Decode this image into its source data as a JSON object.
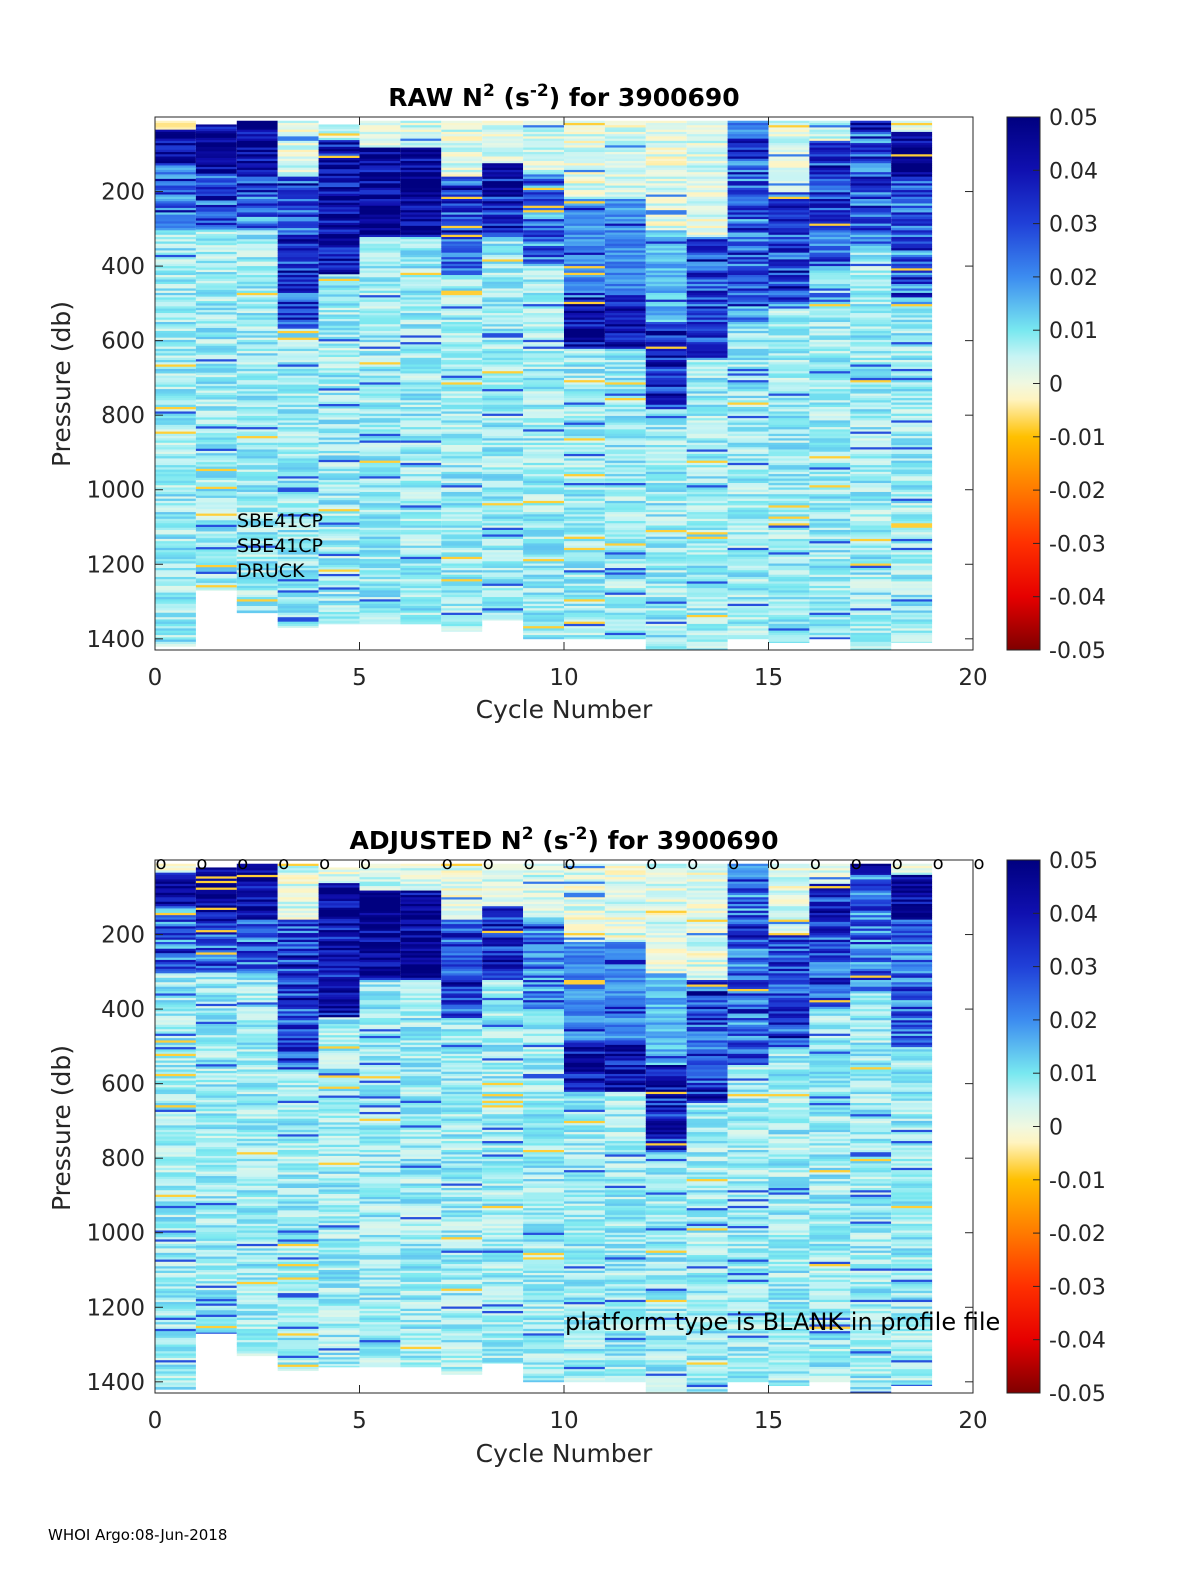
{
  "footer": "WHOI Argo:08-Jun-2018",
  "colormap": {
    "stops": [
      {
        "v": -0.05,
        "color": "#7f0000"
      },
      {
        "v": -0.04,
        "color": "#e60000"
      },
      {
        "v": -0.03,
        "color": "#ff3000"
      },
      {
        "v": -0.02,
        "color": "#ff7a00"
      },
      {
        "v": -0.01,
        "color": "#ffc000"
      },
      {
        "v": -0.003,
        "color": "#fff4c0"
      },
      {
        "v": 0.0,
        "color": "#f0f8e0"
      },
      {
        "v": 0.005,
        "color": "#c8f4f4"
      },
      {
        "v": 0.01,
        "color": "#78e8f0"
      },
      {
        "v": 0.02,
        "color": "#3c8cf0"
      },
      {
        "v": 0.03,
        "color": "#2040d8"
      },
      {
        "v": 0.04,
        "color": "#1010b0"
      },
      {
        "v": 0.05,
        "color": "#000080"
      }
    ]
  },
  "chart_data": [
    {
      "type": "heatmap",
      "title_prefix": "RAW N",
      "title_exp1": "2",
      "title_mid": " (s",
      "title_exp2": "-2",
      "title_suffix": ") for 3900690",
      "xlabel": "Cycle Number",
      "ylabel": "Pressure (db)",
      "xlim": [
        0,
        20
      ],
      "ylim": [
        0,
        1430
      ],
      "y_reversed": true,
      "xticks": [
        0,
        5,
        10,
        15,
        20
      ],
      "yticks": [
        200,
        400,
        600,
        800,
        1000,
        1200,
        1400
      ],
      "clim": [
        -0.05,
        0.05
      ],
      "colorbar_ticks": [
        "0.05",
        "0.04",
        "0.03",
        "0.02",
        "0.01",
        "0",
        "-0.01",
        "-0.02",
        "-0.03",
        "-0.04",
        "-0.05"
      ],
      "annotations": [
        "SBE41CP",
        "SBE41CP",
        "DRUCK"
      ],
      "markers_label": "",
      "marker_cycles": [],
      "seed": 11,
      "cycles": [
        {
          "cycle": 0,
          "pmin": 10,
          "pmax": 1420,
          "bands": [
            [
              10,
              30,
              0.0
            ],
            [
              30,
              120,
              0.045
            ],
            [
              120,
              300,
              0.025
            ],
            [
              300,
              1420,
              0.008
            ]
          ]
        },
        {
          "cycle": 1,
          "pmin": 20,
          "pmax": 1270,
          "bands": [
            [
              20,
              150,
              0.045
            ],
            [
              150,
              300,
              0.028
            ],
            [
              300,
              1270,
              0.008
            ]
          ]
        },
        {
          "cycle": 2,
          "pmin": 10,
          "pmax": 1330,
          "bands": [
            [
              10,
              160,
              0.045
            ],
            [
              160,
              300,
              0.026
            ],
            [
              300,
              1330,
              0.008
            ]
          ]
        },
        {
          "cycle": 3,
          "pmin": 10,
          "pmax": 1370,
          "bands": [
            [
              10,
              160,
              0.002
            ],
            [
              160,
              560,
              0.03
            ],
            [
              560,
              1370,
              0.008
            ]
          ]
        },
        {
          "cycle": 4,
          "pmin": 20,
          "pmax": 1360,
          "bands": [
            [
              20,
              60,
              0.003
            ],
            [
              60,
              420,
              0.04
            ],
            [
              420,
              1360,
              0.008
            ]
          ]
        },
        {
          "cycle": 5,
          "pmin": 10,
          "pmax": 1360,
          "bands": [
            [
              10,
              80,
              0.003
            ],
            [
              80,
              320,
              0.045
            ],
            [
              320,
              1360,
              0.008
            ]
          ]
        },
        {
          "cycle": 6,
          "pmin": 10,
          "pmax": 1360,
          "bands": [
            [
              10,
              80,
              0.003
            ],
            [
              80,
              320,
              0.045
            ],
            [
              320,
              1360,
              0.008
            ]
          ]
        },
        {
          "cycle": 7,
          "pmin": 10,
          "pmax": 1380,
          "bands": [
            [
              10,
              160,
              0.002
            ],
            [
              160,
              420,
              0.03
            ],
            [
              420,
              1380,
              0.008
            ]
          ]
        },
        {
          "cycle": 8,
          "pmin": 10,
          "pmax": 1350,
          "bands": [
            [
              10,
              120,
              0.002
            ],
            [
              120,
              320,
              0.035
            ],
            [
              320,
              1350,
              0.008
            ]
          ]
        },
        {
          "cycle": 9,
          "pmin": 10,
          "pmax": 1400,
          "bands": [
            [
              10,
              150,
              0.003
            ],
            [
              150,
              400,
              0.025
            ],
            [
              400,
              1400,
              0.008
            ]
          ]
        },
        {
          "cycle": 10,
          "pmin": 10,
          "pmax": 1400,
          "bands": [
            [
              10,
              220,
              0.002
            ],
            [
              220,
              480,
              0.02
            ],
            [
              480,
              620,
              0.04
            ],
            [
              620,
              1400,
              0.008
            ]
          ]
        },
        {
          "cycle": 11,
          "pmin": 10,
          "pmax": 1400,
          "bands": [
            [
              10,
              220,
              0.002
            ],
            [
              220,
              480,
              0.02
            ],
            [
              480,
              620,
              0.04
            ],
            [
              620,
              1400,
              0.008
            ]
          ]
        },
        {
          "cycle": 12,
          "pmin": 10,
          "pmax": 1430,
          "bands": [
            [
              10,
              300,
              0.002
            ],
            [
              300,
              550,
              0.015
            ],
            [
              550,
              780,
              0.035
            ],
            [
              780,
              1430,
              0.008
            ]
          ]
        },
        {
          "cycle": 13,
          "pmin": 10,
          "pmax": 1430,
          "bands": [
            [
              10,
              320,
              0.002
            ],
            [
              320,
              650,
              0.03
            ],
            [
              650,
              1430,
              0.008
            ]
          ]
        },
        {
          "cycle": 14,
          "pmin": 10,
          "pmax": 1400,
          "bands": [
            [
              10,
              60,
              0.02
            ],
            [
              60,
              550,
              0.025
            ],
            [
              550,
              1400,
              0.008
            ]
          ]
        },
        {
          "cycle": 15,
          "pmin": 10,
          "pmax": 1410,
          "bands": [
            [
              10,
              200,
              0.002
            ],
            [
              200,
              500,
              0.03
            ],
            [
              500,
              1410,
              0.008
            ]
          ]
        },
        {
          "cycle": 16,
          "pmin": 10,
          "pmax": 1400,
          "bands": [
            [
              10,
              60,
              0.003
            ],
            [
              60,
              400,
              0.03
            ],
            [
              400,
              1400,
              0.008
            ]
          ]
        },
        {
          "cycle": 17,
          "pmin": 10,
          "pmax": 1430,
          "bands": [
            [
              10,
              40,
              0.04
            ],
            [
              40,
              350,
              0.025
            ],
            [
              350,
              1430,
              0.008
            ]
          ]
        },
        {
          "cycle": 18,
          "pmin": 10,
          "pmax": 1410,
          "bands": [
            [
              10,
              40,
              0.002
            ],
            [
              40,
              160,
              0.045
            ],
            [
              160,
              500,
              0.025
            ],
            [
              500,
              1410,
              0.008
            ]
          ]
        }
      ]
    },
    {
      "type": "heatmap",
      "title_prefix": "ADJUSTED N",
      "title_exp1": "2",
      "title_mid": " (s",
      "title_exp2": "-2",
      "title_suffix": ") for 3900690",
      "xlabel": "Cycle Number",
      "ylabel": "Pressure (db)",
      "xlim": [
        0,
        20
      ],
      "ylim": [
        0,
        1430
      ],
      "y_reversed": true,
      "xticks": [
        0,
        5,
        10,
        15,
        20
      ],
      "yticks": [
        200,
        400,
        600,
        800,
        1000,
        1200,
        1400
      ],
      "clim": [
        -0.05,
        0.05
      ],
      "colorbar_ticks": [
        "0.05",
        "0.04",
        "0.03",
        "0.02",
        "0.01",
        "0",
        "-0.01",
        "-0.02",
        "-0.03",
        "-0.04",
        "-0.05"
      ],
      "annotations": [
        "platform type is BLANK in profile file"
      ],
      "markers_label": "o",
      "marker_cycles": [
        0,
        1,
        2,
        3,
        4,
        5,
        7,
        8,
        9,
        10,
        12,
        13,
        14,
        15,
        16,
        17,
        18,
        19,
        20
      ],
      "seed": 23,
      "cycles": [
        {
          "cycle": 0,
          "pmin": 10,
          "pmax": 1420,
          "bands": [
            [
              10,
              30,
              0.0
            ],
            [
              30,
              120,
              0.045
            ],
            [
              120,
              300,
              0.025
            ],
            [
              300,
              1420,
              0.008
            ]
          ]
        },
        {
          "cycle": 1,
          "pmin": 20,
          "pmax": 1270,
          "bands": [
            [
              20,
              150,
              0.045
            ],
            [
              150,
              300,
              0.028
            ],
            [
              300,
              1270,
              0.008
            ]
          ]
        },
        {
          "cycle": 2,
          "pmin": 10,
          "pmax": 1330,
          "bands": [
            [
              10,
              160,
              0.045
            ],
            [
              160,
              300,
              0.026
            ],
            [
              300,
              1330,
              0.008
            ]
          ]
        },
        {
          "cycle": 3,
          "pmin": 10,
          "pmax": 1370,
          "bands": [
            [
              10,
              160,
              0.002
            ],
            [
              160,
              560,
              0.03
            ],
            [
              560,
              1370,
              0.008
            ]
          ]
        },
        {
          "cycle": 4,
          "pmin": 20,
          "pmax": 1360,
          "bands": [
            [
              20,
              60,
              0.003
            ],
            [
              60,
              420,
              0.04
            ],
            [
              420,
              1360,
              0.008
            ]
          ]
        },
        {
          "cycle": 5,
          "pmin": 10,
          "pmax": 1360,
          "bands": [
            [
              10,
              80,
              0.003
            ],
            [
              80,
              320,
              0.045
            ],
            [
              320,
              1360,
              0.008
            ]
          ]
        },
        {
          "cycle": 6,
          "pmin": 10,
          "pmax": 1360,
          "bands": [
            [
              10,
              80,
              0.003
            ],
            [
              80,
              320,
              0.045
            ],
            [
              320,
              1360,
              0.008
            ]
          ]
        },
        {
          "cycle": 7,
          "pmin": 10,
          "pmax": 1380,
          "bands": [
            [
              10,
              160,
              0.002
            ],
            [
              160,
              420,
              0.03
            ],
            [
              420,
              1380,
              0.008
            ]
          ]
        },
        {
          "cycle": 8,
          "pmin": 10,
          "pmax": 1350,
          "bands": [
            [
              10,
              120,
              0.002
            ],
            [
              120,
              320,
              0.035
            ],
            [
              320,
              1350,
              0.008
            ]
          ]
        },
        {
          "cycle": 9,
          "pmin": 10,
          "pmax": 1400,
          "bands": [
            [
              10,
              150,
              0.003
            ],
            [
              150,
              400,
              0.025
            ],
            [
              400,
              1400,
              0.008
            ]
          ]
        },
        {
          "cycle": 10,
          "pmin": 10,
          "pmax": 1400,
          "bands": [
            [
              10,
              220,
              0.002
            ],
            [
              220,
              480,
              0.02
            ],
            [
              480,
              620,
              0.04
            ],
            [
              620,
              1400,
              0.008
            ]
          ]
        },
        {
          "cycle": 11,
          "pmin": 10,
          "pmax": 1400,
          "bands": [
            [
              10,
              220,
              0.002
            ],
            [
              220,
              480,
              0.02
            ],
            [
              480,
              620,
              0.04
            ],
            [
              620,
              1400,
              0.008
            ]
          ]
        },
        {
          "cycle": 12,
          "pmin": 10,
          "pmax": 1430,
          "bands": [
            [
              10,
              300,
              0.002
            ],
            [
              300,
              550,
              0.015
            ],
            [
              550,
              780,
              0.035
            ],
            [
              780,
              1430,
              0.008
            ]
          ]
        },
        {
          "cycle": 13,
          "pmin": 10,
          "pmax": 1430,
          "bands": [
            [
              10,
              320,
              0.002
            ],
            [
              320,
              650,
              0.03
            ],
            [
              650,
              1430,
              0.008
            ]
          ]
        },
        {
          "cycle": 14,
          "pmin": 10,
          "pmax": 1400,
          "bands": [
            [
              10,
              60,
              0.02
            ],
            [
              60,
              550,
              0.025
            ],
            [
              550,
              1400,
              0.008
            ]
          ]
        },
        {
          "cycle": 15,
          "pmin": 10,
          "pmax": 1410,
          "bands": [
            [
              10,
              200,
              0.002
            ],
            [
              200,
              500,
              0.03
            ],
            [
              500,
              1410,
              0.008
            ]
          ]
        },
        {
          "cycle": 16,
          "pmin": 10,
          "pmax": 1400,
          "bands": [
            [
              10,
              60,
              0.003
            ],
            [
              60,
              400,
              0.03
            ],
            [
              400,
              1400,
              0.008
            ]
          ]
        },
        {
          "cycle": 17,
          "pmin": 10,
          "pmax": 1430,
          "bands": [
            [
              10,
              40,
              0.04
            ],
            [
              40,
              350,
              0.025
            ],
            [
              350,
              1430,
              0.008
            ]
          ]
        },
        {
          "cycle": 18,
          "pmin": 10,
          "pmax": 1410,
          "bands": [
            [
              10,
              40,
              0.002
            ],
            [
              40,
              160,
              0.045
            ],
            [
              160,
              500,
              0.025
            ],
            [
              500,
              1410,
              0.008
            ]
          ]
        }
      ]
    }
  ]
}
